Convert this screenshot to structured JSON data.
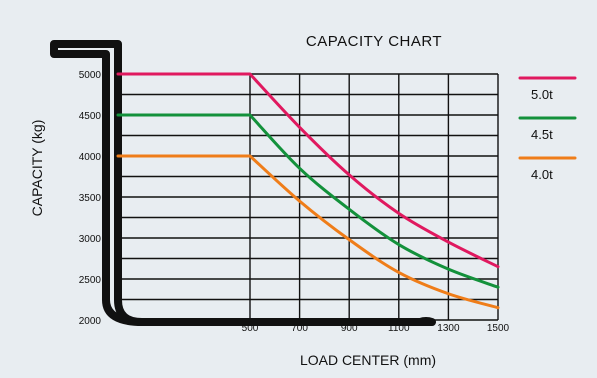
{
  "chart_data": {
    "type": "line",
    "title": "CAPACITY CHART",
    "xlabel": "LOAD CENTER (mm)",
    "ylabel": "CAPACITY (kg)",
    "xlim": [
      0,
      1500
    ],
    "ylim": [
      2000,
      5000
    ],
    "x_ticks": [
      500,
      700,
      900,
      1100,
      1300,
      1500
    ],
    "y_ticks": [
      5000,
      4500,
      4000,
      3500,
      3000,
      2500,
      2000
    ],
    "grid": true,
    "legend_position": "right",
    "series": [
      {
        "name": "5.0t",
        "color": "#e0195f",
        "x": [
          0,
          500,
          700,
          900,
          1100,
          1300,
          1500
        ],
        "y": [
          5000,
          5000,
          4350,
          3770,
          3300,
          2950,
          2650
        ]
      },
      {
        "name": "4.5t",
        "color": "#13913b",
        "x": [
          0,
          500,
          700,
          900,
          1100,
          1300,
          1500
        ],
        "y": [
          4500,
          4500,
          3850,
          3350,
          2920,
          2620,
          2400
        ]
      },
      {
        "name": "4.0t",
        "color": "#ef7d19",
        "x": [
          0,
          500,
          700,
          900,
          1100,
          1300,
          1500
        ],
        "y": [
          4000,
          4000,
          3450,
          2980,
          2580,
          2320,
          2150
        ]
      }
    ]
  }
}
